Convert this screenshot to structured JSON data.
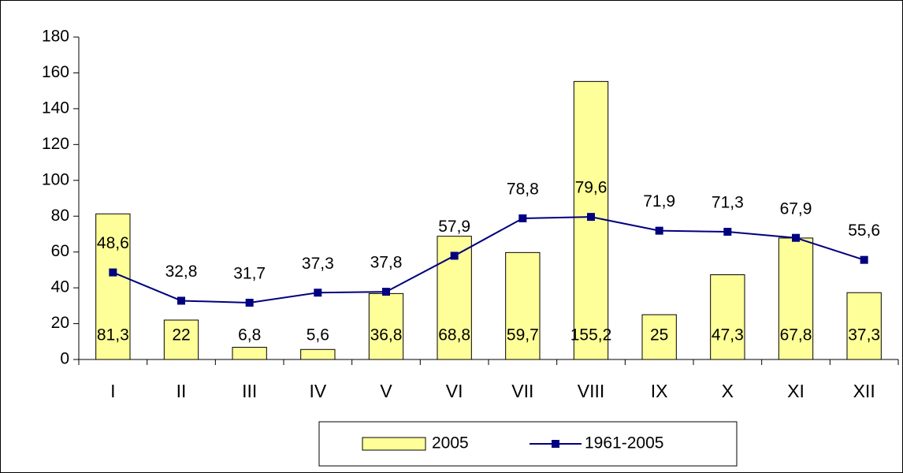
{
  "chart_data": {
    "type": "bar-line",
    "categories": [
      "I",
      "II",
      "III",
      "IV",
      "V",
      "VI",
      "VII",
      "VIII",
      "IX",
      "X",
      "XI",
      "XII"
    ],
    "series": [
      {
        "name": "2005",
        "type": "bar",
        "color": "#ffff99",
        "values": [
          81.3,
          22,
          6.8,
          5.6,
          36.8,
          68.8,
          59.7,
          155.2,
          25,
          47.3,
          67.8,
          37.3
        ],
        "value_labels": [
          "81,3",
          "22",
          "6,8",
          "5,6",
          "36,8",
          "68,8",
          "59,7",
          "155,2",
          "25",
          "47,3",
          "67,8",
          "37,3"
        ]
      },
      {
        "name": "1961-2005",
        "type": "line",
        "color": "#000080",
        "values": [
          48.6,
          32.8,
          31.7,
          37.3,
          37.8,
          57.9,
          78.8,
          79.6,
          71.9,
          71.3,
          67.9,
          55.6
        ],
        "value_labels": [
          "48,6",
          "32,8",
          "31,7",
          "37,3",
          "37,8",
          "57,9",
          "78,8",
          "79,6",
          "71,9",
          "71,3",
          "67,9",
          "55,6"
        ]
      }
    ],
    "ylim": [
      0,
      180
    ],
    "yticks": [
      0,
      20,
      40,
      60,
      80,
      100,
      120,
      140,
      160,
      180
    ],
    "legend": "bottom"
  }
}
